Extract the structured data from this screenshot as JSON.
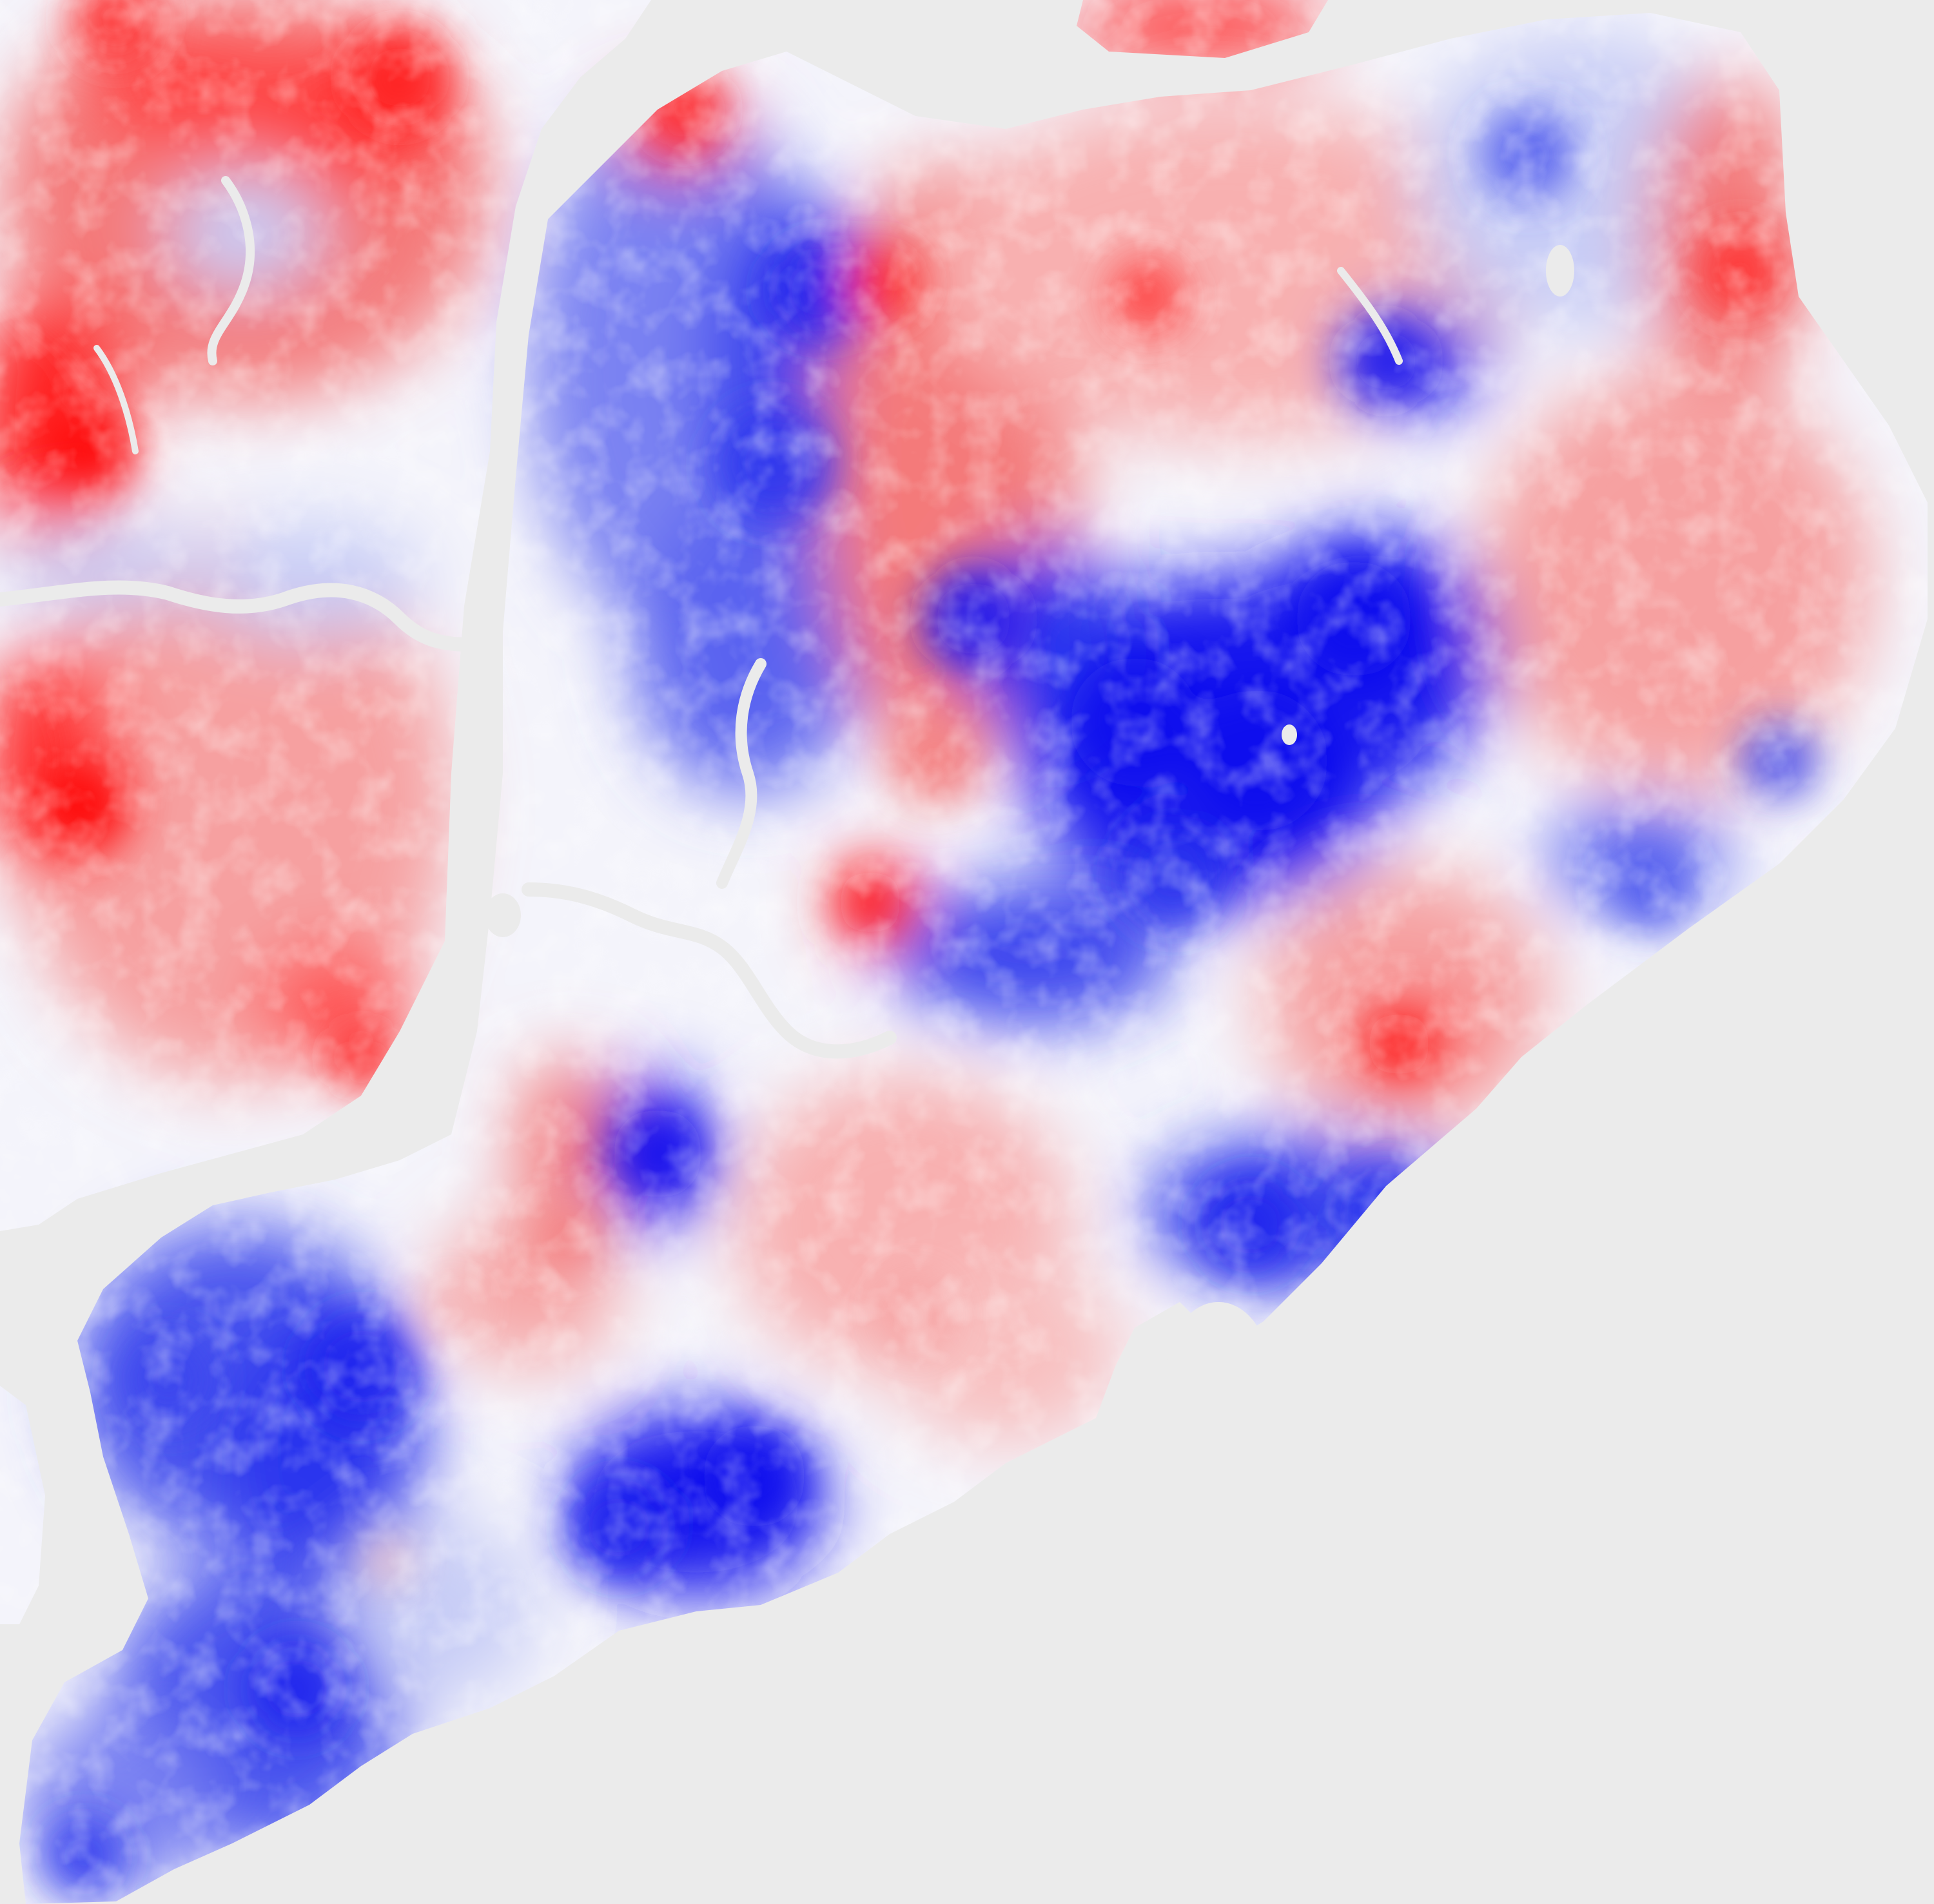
{
  "map": {
    "colors": {
      "background": "#ebebeb",
      "water": "#ebebeb",
      "strong_red": "#ff0000",
      "mid_red": "#f47a7a",
      "light_red": "#f8c8c8",
      "neutral": "#f4f4fb",
      "light_blue": "#c8cdf6",
      "mid_blue": "#7a82f2",
      "strong_blue": "#1212ee"
    },
    "diverging_scale": [
      "strong_blue",
      "mid_blue",
      "light_blue",
      "neutral",
      "light_red",
      "mid_red",
      "strong_red"
    ]
  }
}
